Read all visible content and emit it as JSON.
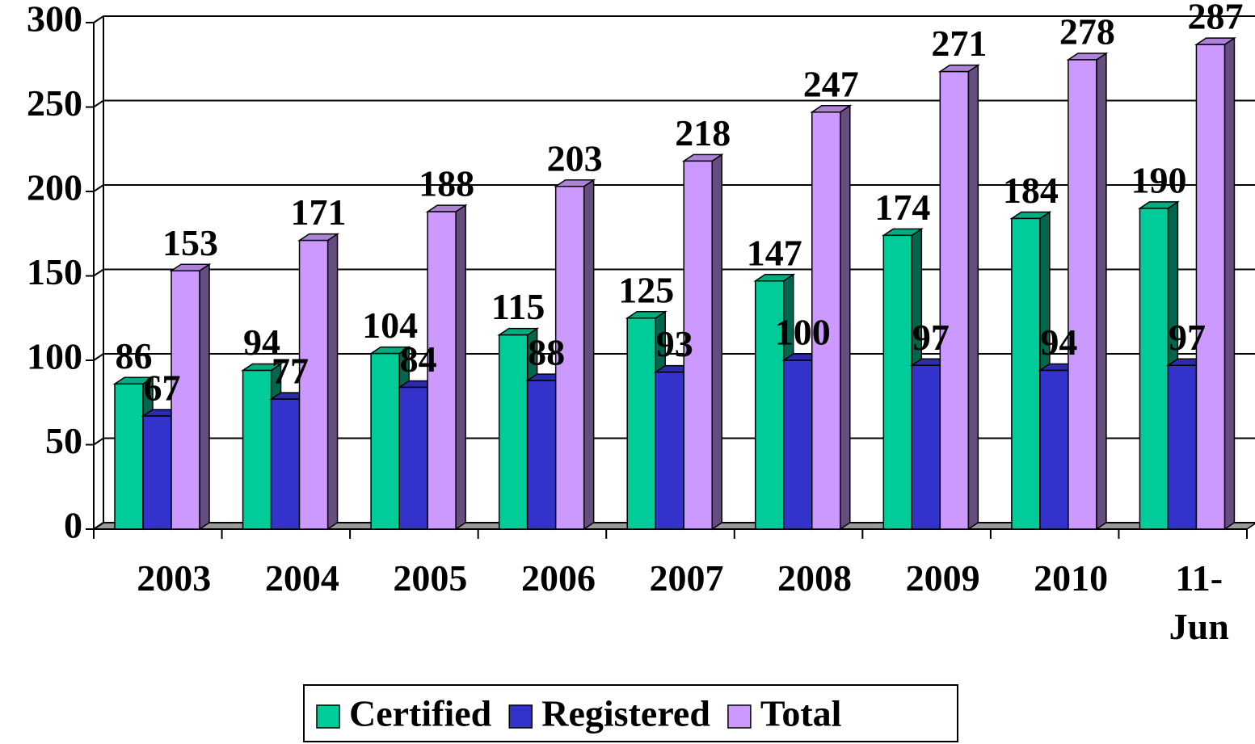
{
  "chart_data": {
    "type": "bar",
    "categories": [
      "2003",
      "2004",
      "2005",
      "2006",
      "2007",
      "2008",
      "2009",
      "2010",
      "11-Jun"
    ],
    "series": [
      {
        "name": "Certified",
        "color": "#00cc99",
        "values": [
          86,
          94,
          104,
          115,
          125,
          147,
          174,
          184,
          190
        ]
      },
      {
        "name": "Registered",
        "color": "#3333cc",
        "values": [
          67,
          77,
          84,
          88,
          93,
          100,
          97,
          94,
          97
        ]
      },
      {
        "name": "Total",
        "color": "#cc99ff",
        "values": [
          153,
          171,
          188,
          203,
          218,
          247,
          271,
          278,
          287
        ]
      }
    ],
    "ylim": [
      0,
      300
    ],
    "yticks": [
      0,
      50,
      100,
      150,
      200,
      250,
      300
    ],
    "grid": true,
    "legend": "bottom"
  }
}
